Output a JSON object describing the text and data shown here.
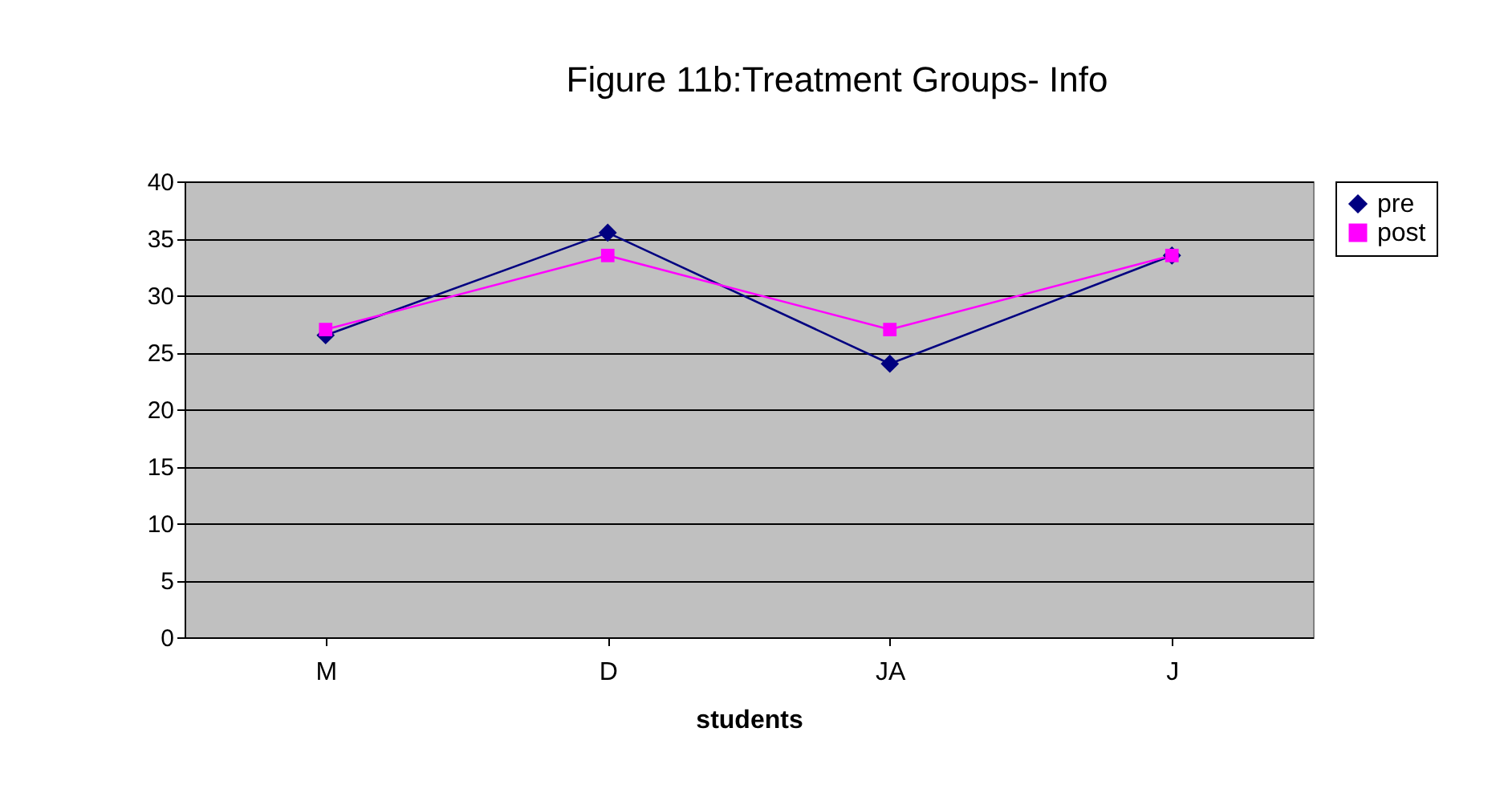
{
  "chart_data": {
    "type": "line",
    "title": "Figure 11b:Treatment Groups- Info",
    "xlabel": "students",
    "categories": [
      "M",
      "D",
      "JA",
      "J"
    ],
    "series": [
      {
        "name": "pre",
        "color": "#000080",
        "marker": "diamond",
        "values": [
          26.5,
          35.5,
          24,
          33.5
        ]
      },
      {
        "name": "post",
        "color": "#ff00ff",
        "marker": "square",
        "values": [
          27,
          33.5,
          27,
          33.5
        ]
      }
    ],
    "ylim": [
      0,
      40
    ],
    "yticks": [
      0,
      5,
      10,
      15,
      20,
      25,
      30,
      35,
      40
    ],
    "grid": "y",
    "legend": "right"
  }
}
